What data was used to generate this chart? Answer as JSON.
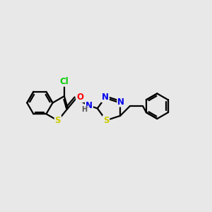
{
  "background_color": "#e8e8e8",
  "bond_color": "#000000",
  "bond_width": 1.6,
  "atom_colors": {
    "S": "#cccc00",
    "N": "#0000ee",
    "O": "#ff0000",
    "Cl": "#00cc00",
    "C": "#000000",
    "H": "#555555"
  },
  "figsize": [
    3.0,
    3.0
  ],
  "dpi": 100
}
